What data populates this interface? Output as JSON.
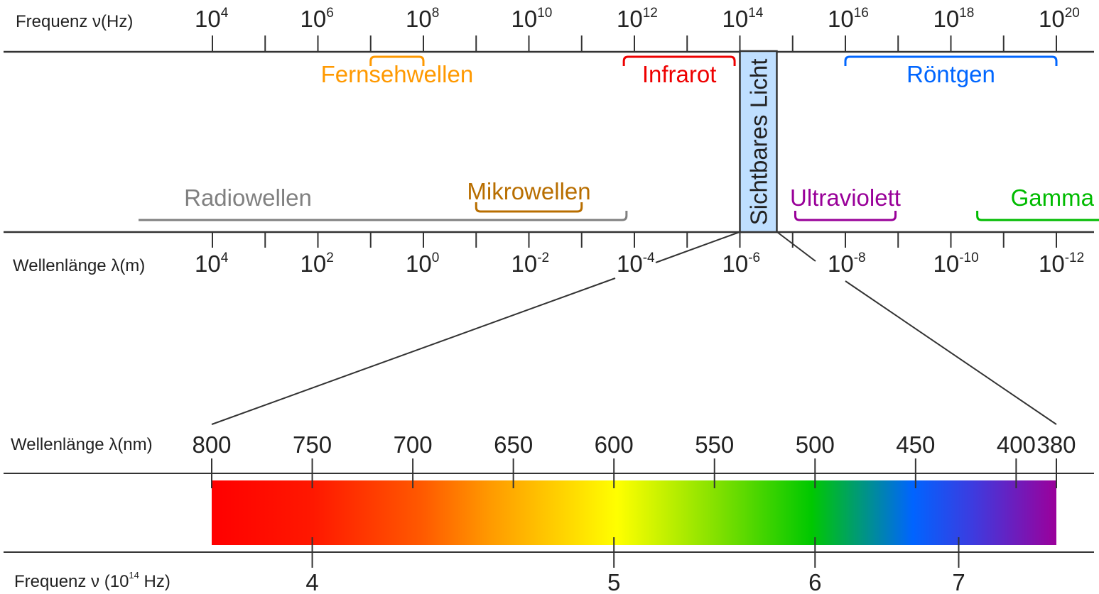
{
  "spectrum": {
    "frequency_axis": {
      "title": "Frequenz ν(Hz)",
      "tick_base": "10",
      "labeled_exponents": [
        "4",
        "6",
        "8",
        "10",
        "12",
        "14",
        "16",
        "18",
        "20"
      ],
      "tick_exponents": [
        4,
        5,
        6,
        7,
        8,
        9,
        10,
        11,
        12,
        13,
        14,
        15,
        16,
        17,
        18,
        19,
        20
      ]
    },
    "wavelength_axis": {
      "title": "Wellenlänge λ(m)",
      "tick_base": "10",
      "labeled_exponents": [
        "4",
        "2",
        "0",
        "-2",
        "-4",
        "-6",
        "-8",
        "-10",
        "-12"
      ],
      "tick_exponents": [
        4,
        3,
        2,
        1,
        0,
        -1,
        -2,
        -3,
        -4,
        -5,
        -6,
        -7,
        -8,
        -9,
        -10,
        -11,
        -12
      ]
    },
    "visible_band": {
      "label": "Sichtbares Licht",
      "color": "#bfdfff",
      "wavelength_exp_range": [
        -6,
        -6.7
      ]
    },
    "bands_top": [
      {
        "label": "Fernsehwellen",
        "color": "#ff9900",
        "freq_exp_range": [
          7,
          8
        ]
      },
      {
        "label": "Infrarot",
        "color": "#ee0000",
        "freq_exp_range": [
          11.8,
          13.9
        ]
      },
      {
        "label": "Röntgen",
        "color": "#0066ff",
        "freq_exp_range": [
          16,
          20
        ]
      }
    ],
    "bands_bottom": [
      {
        "label": "Radiowellen",
        "color": "#808080",
        "wl_exp_range": [
          5.4,
          -3.85
        ]
      },
      {
        "label": "Mikrowellen",
        "color": "#b86e00",
        "wl_exp_range": [
          -1,
          -3
        ]
      },
      {
        "label": "Ultraviolett",
        "color": "#990099",
        "wl_exp_range": [
          -7.05,
          -8.95
        ]
      },
      {
        "label": "Gamma",
        "color": "#00bb00",
        "wl_exp_range": [
          -10.5,
          -12.4
        ]
      }
    ]
  },
  "visible": {
    "wavelength_title": "Wellenlänge λ(nm)",
    "wavelength_ticks": [
      "800",
      "750",
      "700",
      "650",
      "600",
      "550",
      "500",
      "450",
      "400",
      "380"
    ],
    "frequency_title": "Frequenz ν (10",
    "frequency_title_sup": "14",
    "frequency_title_unit": " Hz)",
    "frequency_ticks": [
      "4",
      "5",
      "6",
      "7"
    ],
    "gradient_colors": [
      "#ff0000",
      "#ff1800",
      "#ff5a00",
      "#ff9a00",
      "#ffff00",
      "#80e000",
      "#00c800",
      "#0064ff",
      "#3c3ce0",
      "#9b009b"
    ]
  }
}
